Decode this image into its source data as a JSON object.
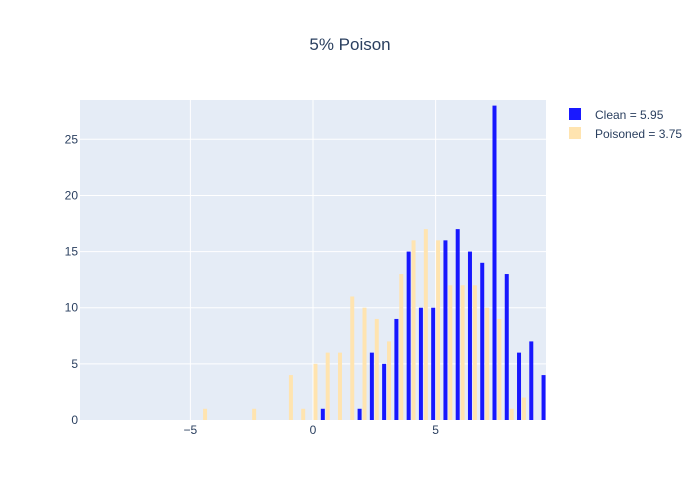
{
  "chart_data": {
    "type": "bar",
    "title": "5% Poison",
    "xlabel": "",
    "ylabel": "",
    "xlim": [
      -9.5,
      9.5
    ],
    "ylim": [
      0,
      28.5
    ],
    "x_ticks": [
      -5,
      0,
      5
    ],
    "x_tick_labels": [
      "−5",
      "0",
      "5"
    ],
    "y_ticks": [
      0,
      5,
      10,
      15,
      20,
      25
    ],
    "y_tick_labels": [
      "0",
      "5",
      "10",
      "15",
      "20",
      "25"
    ],
    "grid": true,
    "legend_position": "top-right",
    "series": [
      {
        "name": "Clean = 5.95",
        "color": "#0000ff",
        "opacity": 0.9,
        "points": [
          {
            "x": 0.4,
            "y": 1
          },
          {
            "x": 1.9,
            "y": 1
          },
          {
            "x": 2.4,
            "y": 6
          },
          {
            "x": 2.9,
            "y": 5
          },
          {
            "x": 3.4,
            "y": 9
          },
          {
            "x": 3.9,
            "y": 15
          },
          {
            "x": 4.4,
            "y": 10
          },
          {
            "x": 4.9,
            "y": 10
          },
          {
            "x": 5.4,
            "y": 16
          },
          {
            "x": 5.9,
            "y": 17
          },
          {
            "x": 6.4,
            "y": 15
          },
          {
            "x": 6.9,
            "y": 14
          },
          {
            "x": 7.4,
            "y": 28
          },
          {
            "x": 7.9,
            "y": 13
          },
          {
            "x": 8.4,
            "y": 6
          },
          {
            "x": 8.9,
            "y": 7
          },
          {
            "x": 9.4,
            "y": 4
          }
        ]
      },
      {
        "name": "Poisoned = 3.75",
        "color": "#ffe4b0",
        "opacity": 1,
        "points": [
          {
            "x": -4.4,
            "y": 1
          },
          {
            "x": -2.4,
            "y": 1
          },
          {
            "x": -0.9,
            "y": 4
          },
          {
            "x": -0.4,
            "y": 1
          },
          {
            "x": 0.1,
            "y": 5
          },
          {
            "x": 0.6,
            "y": 6
          },
          {
            "x": 1.1,
            "y": 6
          },
          {
            "x": 1.6,
            "y": 11
          },
          {
            "x": 2.1,
            "y": 10
          },
          {
            "x": 2.6,
            "y": 9
          },
          {
            "x": 3.1,
            "y": 7
          },
          {
            "x": 3.6,
            "y": 13
          },
          {
            "x": 4.1,
            "y": 16
          },
          {
            "x": 4.6,
            "y": 17
          },
          {
            "x": 5.1,
            "y": 16
          },
          {
            "x": 5.6,
            "y": 12
          },
          {
            "x": 6.1,
            "y": 12
          },
          {
            "x": 6.6,
            "y": 12
          },
          {
            "x": 7.1,
            "y": 10
          },
          {
            "x": 7.6,
            "y": 9
          },
          {
            "x": 8.1,
            "y": 1
          },
          {
            "x": 8.6,
            "y": 2
          }
        ]
      }
    ]
  }
}
